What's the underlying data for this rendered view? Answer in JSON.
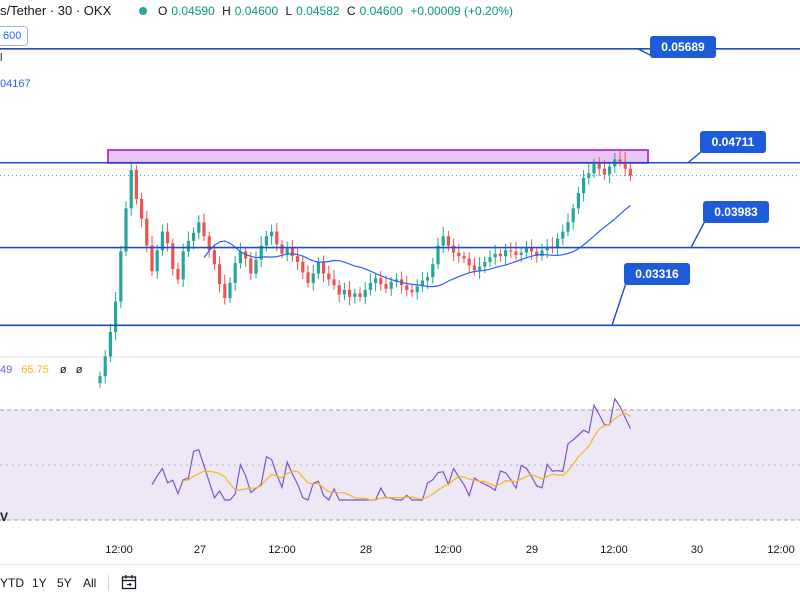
{
  "header": {
    "symbol": "s/Tether · 30 · OKX",
    "open_label": "O",
    "open": "0.04590",
    "high_label": "H",
    "high": "0.04600",
    "low_label": "L",
    "low": "0.04582",
    "close_label": "C",
    "close": "0.04600",
    "change": "+0.00009 (+0.20%)"
  },
  "left_pill": "600",
  "left_line1": "l",
  "left_line2": "04167",
  "rsi_legend": {
    "rsi": "49",
    "ma": "65.75",
    "v1": "ø",
    "v2": "ø"
  },
  "vol_label": "V",
  "levels": [
    {
      "value": 0.05689,
      "label": "0.05689"
    },
    {
      "value": 0.04711,
      "label": "0.04711"
    },
    {
      "value": 0.03983,
      "label": "0.03983"
    },
    {
      "value": 0.03316,
      "label": "0.03316"
    }
  ],
  "colors": {
    "level_line": "#1e4fc2",
    "label_bg": "#1e5bd8",
    "zone_fill": "#e9c6f5",
    "zone_border": "#b13fd8",
    "up": "#26a69a",
    "down": "#ef5350",
    "ma": "#2962ff",
    "rsi_line": "#7e57c2",
    "rsi_ma": "#f5b71c",
    "rsi_band": "#ede7f6"
  },
  "x_ticks": [
    "12:00",
    "27",
    "12:00",
    "28",
    "12:00",
    "29",
    "12:00",
    "30",
    "12:00"
  ],
  "bottom_ranges": [
    "YTD",
    "1Y",
    "5Y",
    "All"
  ],
  "chart_data": {
    "type": "candlestick",
    "x_labels": [
      "26 12:00",
      "27",
      "27 12:00",
      "28",
      "28 12:00",
      "29",
      "29 12:00",
      "30",
      "30 12:00"
    ],
    "y_range": [
      0.0307,
      0.0585
    ],
    "horizontal_levels": [
      0.05689,
      0.04711,
      0.03983,
      0.03316
    ],
    "resistance_zone": [
      0.0471,
      0.0482
    ],
    "candles_close_approx": [
      0.0288,
      0.0305,
      0.0326,
      0.0352,
      0.0395,
      0.0432,
      0.0465,
      0.044,
      0.0423,
      0.04,
      0.0378,
      0.0396,
      0.0412,
      0.0402,
      0.038,
      0.0371,
      0.0395,
      0.0404,
      0.0411,
      0.042,
      0.0408,
      0.0396,
      0.0384,
      0.0367,
      0.0355,
      0.0368,
      0.0385,
      0.0395,
      0.0389,
      0.0376,
      0.0388,
      0.04,
      0.0408,
      0.0412,
      0.0401,
      0.0393,
      0.0398,
      0.0391,
      0.0386,
      0.0377,
      0.0368,
      0.0376,
      0.0386,
      0.0376,
      0.0371,
      0.0366,
      0.0358,
      0.0362,
      0.0356,
      0.0359,
      0.0356,
      0.0362,
      0.0368,
      0.0372,
      0.0367,
      0.0363,
      0.0369,
      0.0371,
      0.0366,
      0.0362,
      0.036,
      0.0365,
      0.037,
      0.0373,
      0.0384,
      0.04,
      0.0408,
      0.04,
      0.0394,
      0.0391,
      0.0389,
      0.0383,
      0.0379,
      0.0382,
      0.0386,
      0.039,
      0.0393,
      0.0391,
      0.0396,
      0.0395,
      0.0392,
      0.0394,
      0.0398,
      0.0395,
      0.0391,
      0.0396,
      0.0399,
      0.0398,
      0.0406,
      0.0412,
      0.042,
      0.0432,
      0.0445,
      0.0458,
      0.0462,
      0.047,
      0.0466,
      0.0461,
      0.0468,
      0.0474,
      0.0472,
      0.0466,
      0.046
    ],
    "rsi_band": [
      30,
      70
    ]
  }
}
